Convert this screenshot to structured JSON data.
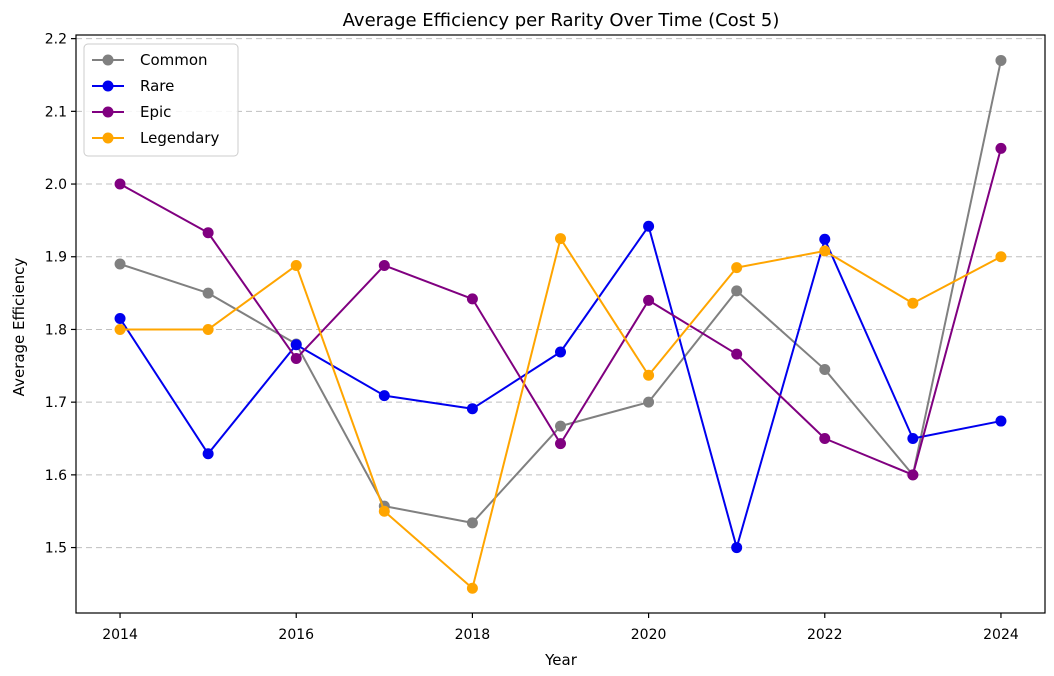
{
  "chart_data": {
    "type": "line",
    "title": "Average Efficiency per Rarity Over Time (Cost 5)",
    "xlabel": "Year",
    "ylabel": "Average Efficiency",
    "x": [
      2014,
      2015,
      2016,
      2017,
      2018,
      2019,
      2020,
      2021,
      2022,
      2023,
      2024
    ],
    "xticks": [
      2014,
      2016,
      2018,
      2020,
      2022,
      2024
    ],
    "xlim": [
      2013.5,
      2024.5
    ],
    "yticks": [
      1.5,
      1.6,
      1.7,
      1.8,
      1.9,
      2.0,
      2.1,
      2.2
    ],
    "ytick_labels": [
      "1.5",
      "1.6",
      "1.7",
      "1.8",
      "1.9",
      "2.0",
      "2.1",
      "2.2"
    ],
    "ylim": [
      1.41,
      2.205
    ],
    "grid": "y-dashed",
    "legend_position": "top-left",
    "series": [
      {
        "name": "Common",
        "color": "#808080",
        "values": [
          1.89,
          1.85,
          1.78,
          1.557,
          1.534,
          1.667,
          1.7,
          1.853,
          1.745,
          1.6,
          2.17
        ]
      },
      {
        "name": "Rare",
        "color": "#0000ee",
        "values": [
          1.815,
          1.629,
          1.779,
          1.709,
          1.691,
          1.769,
          1.942,
          1.5,
          1.924,
          1.65,
          1.674
        ]
      },
      {
        "name": "Epic",
        "color": "#800080",
        "values": [
          2.0,
          1.933,
          1.76,
          1.888,
          1.842,
          1.643,
          1.84,
          1.766,
          1.65,
          1.6,
          2.049
        ]
      },
      {
        "name": "Legendary",
        "color": "#ffa500",
        "values": [
          1.8,
          1.8,
          1.888,
          1.55,
          1.444,
          1.925,
          1.737,
          1.885,
          1.908,
          1.836,
          1.9
        ]
      }
    ]
  }
}
